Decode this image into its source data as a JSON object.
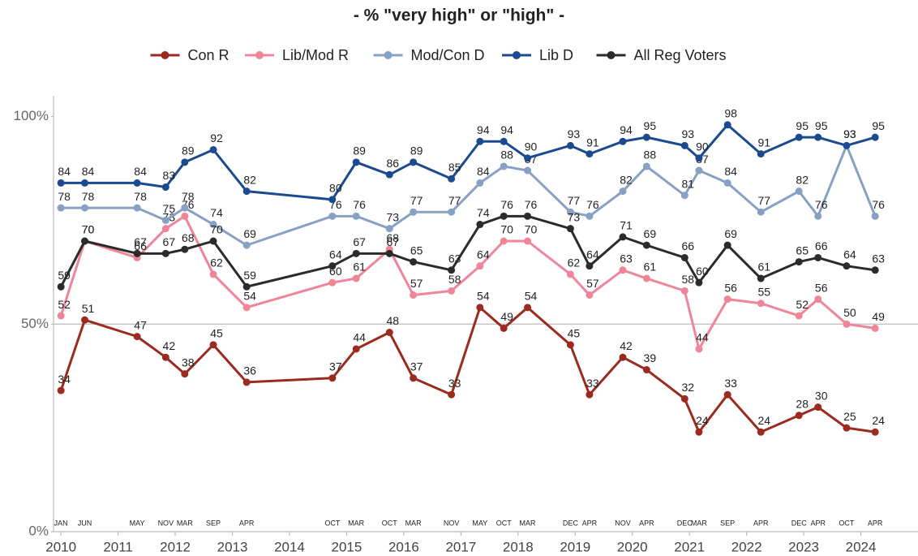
{
  "chart_data": {
    "type": "line",
    "subtitle": "- % \"very high\" or \"high\" -",
    "x": [
      "2010-01",
      "2010-06",
      "2011-05",
      "2011-11",
      "2012-03",
      "2012-09",
      "2013-04",
      "2014-10",
      "2015-03",
      "2015-10",
      "2016-03",
      "2016-11",
      "2017-05",
      "2017-10",
      "2018-03",
      "2018-12",
      "2019-04",
      "2019-11",
      "2020-04",
      "2020-12",
      "2021-03",
      "2021-09",
      "2022-04",
      "2022-12",
      "2023-04",
      "2023-10",
      "2024-04"
    ],
    "x_labels": [
      "JAN",
      "JUN",
      "MAY",
      "NOV",
      "MAR",
      "SEP",
      "APR",
      "OCT",
      "MAR",
      "OCT",
      "MAR",
      "NOV",
      "MAY",
      "OCT",
      "MAR",
      "DEC",
      "APR",
      "NOV",
      "APR",
      "DEC",
      "MAR",
      "SEP",
      "APR",
      "DEC",
      "APR",
      "OCT",
      "APR"
    ],
    "xlim": [
      2009.87,
      2025
    ],
    "xticks": [
      2010,
      2011,
      2012,
      2013,
      2014,
      2015,
      2016,
      2017,
      2018,
      2019,
      2020,
      2021,
      2022,
      2023,
      2024
    ],
    "ylim": [
      0,
      105
    ],
    "yticks": [
      {
        "value": 0,
        "label": "0%"
      },
      {
        "value": 50,
        "label": "50%"
      },
      {
        "value": 100,
        "label": "100%"
      }
    ],
    "hline": 50,
    "legend": "top",
    "series": [
      {
        "name": "Con R",
        "color": "#9b2a1f",
        "values": [
          34,
          51,
          47,
          42,
          38,
          45,
          36,
          37,
          44,
          48,
          37,
          33,
          54,
          49,
          54,
          45,
          33,
          42,
          39,
          32,
          24,
          33,
          24,
          28,
          30,
          25,
          24
        ]
      },
      {
        "name": "Lib/Mod R",
        "color": "#ef8599",
        "values": [
          52,
          70,
          66,
          73,
          76,
          62,
          54,
          60,
          61,
          68,
          57,
          58,
          64,
          70,
          70,
          62,
          57,
          63,
          61,
          58,
          44,
          56,
          55,
          52,
          56,
          50,
          49
        ]
      },
      {
        "name": "Mod/Con D",
        "color": "#87a0c4",
        "values": [
          78,
          78,
          78,
          75,
          78,
          74,
          69,
          76,
          76,
          73,
          77,
          77,
          84,
          88,
          87,
          77,
          76,
          82,
          88,
          81,
          87,
          84,
          77,
          82,
          76,
          93,
          76
        ]
      },
      {
        "name": "Lib D",
        "color": "#1b4a8f",
        "values": [
          84,
          84,
          84,
          83,
          89,
          92,
          82,
          80,
          89,
          86,
          89,
          85,
          94,
          94,
          90,
          93,
          91,
          94,
          95,
          93,
          90,
          98,
          91,
          95,
          95,
          93,
          95
        ]
      },
      {
        "name": "All Reg Voters",
        "color": "#2b2b2b",
        "values": [
          59,
          70,
          67,
          67,
          68,
          70,
          59,
          64,
          67,
          67,
          65,
          63,
          74,
          76,
          76,
          73,
          64,
          71,
          69,
          66,
          60,
          69,
          61,
          65,
          66,
          64,
          63
        ]
      }
    ]
  }
}
